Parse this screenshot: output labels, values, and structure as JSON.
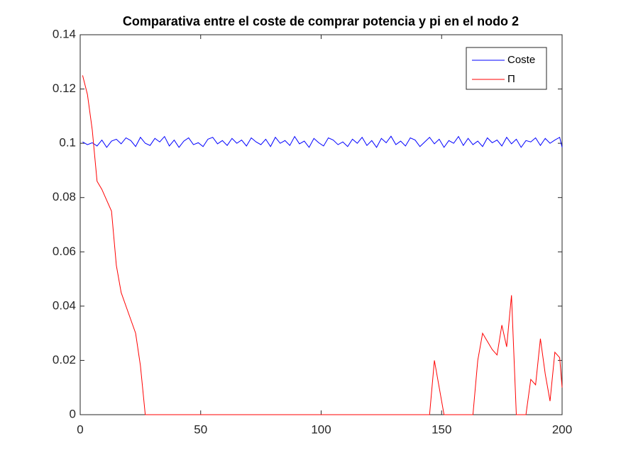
{
  "chart_data": {
    "type": "line",
    "title": "Comparativa entre el coste de comprar potencia y pi en el nodo 2",
    "x": [
      1,
      3,
      5,
      7,
      9,
      11,
      13,
      15,
      17,
      19,
      21,
      23,
      25,
      27,
      29,
      31,
      33,
      35,
      37,
      39,
      41,
      43,
      45,
      47,
      49,
      51,
      53,
      55,
      57,
      59,
      61,
      63,
      65,
      67,
      69,
      71,
      73,
      75,
      77,
      79,
      81,
      83,
      85,
      87,
      89,
      91,
      93,
      95,
      97,
      99,
      101,
      103,
      105,
      107,
      109,
      111,
      113,
      115,
      117,
      119,
      121,
      123,
      125,
      127,
      129,
      131,
      133,
      135,
      137,
      139,
      141,
      143,
      145,
      147,
      149,
      151,
      153,
      155,
      157,
      159,
      161,
      163,
      165,
      167,
      169,
      171,
      173,
      175,
      177,
      179,
      181,
      183,
      185,
      187,
      189,
      191,
      193,
      195,
      197,
      199,
      200
    ],
    "series": [
      {
        "name": "Coste",
        "color": "#0000ff",
        "values": [
          0.1005,
          0.0995,
          0.1002,
          0.099,
          0.1012,
          0.0985,
          0.1008,
          0.1015,
          0.0998,
          0.102,
          0.101,
          0.0988,
          0.1022,
          0.1,
          0.0992,
          0.1018,
          0.1005,
          0.1025,
          0.099,
          0.1012,
          0.0985,
          0.1008,
          0.102,
          0.0995,
          0.1002,
          0.0988,
          0.1015,
          0.1022,
          0.0998,
          0.101,
          0.0992,
          0.1018,
          0.1,
          0.1012,
          0.099,
          0.102,
          0.1005,
          0.0995,
          0.1015,
          0.0988,
          0.1022,
          0.1,
          0.101,
          0.0992,
          0.1025,
          0.0998,
          0.1008,
          0.0985,
          0.1018,
          0.1002,
          0.099,
          0.102,
          0.1012,
          0.0995,
          0.1005,
          0.0988,
          0.1015,
          0.1,
          0.1022,
          0.0992,
          0.101,
          0.0985,
          0.1018,
          0.1002,
          0.1026,
          0.0995,
          0.1008,
          0.099,
          0.102,
          0.1012,
          0.0988,
          0.1005,
          0.1022,
          0.0998,
          0.1015,
          0.0985,
          0.101,
          0.1,
          0.1025,
          0.0992,
          0.1018,
          0.0995,
          0.1008,
          0.0988,
          0.102,
          0.1002,
          0.1012,
          0.099,
          0.1022,
          0.0998,
          0.1015,
          0.0985,
          0.101,
          0.1005,
          0.102,
          0.0992,
          0.1018,
          0.1,
          0.1012,
          0.1022,
          0.0985
        ]
      },
      {
        "name": "Π",
        "color": "#ff0000",
        "values": [
          0.125,
          0.118,
          0.105,
          0.086,
          0.083,
          0.079,
          0.075,
          0.055,
          0.045,
          0.04,
          0.035,
          0.03,
          0.018,
          0,
          0,
          0,
          0,
          0,
          0,
          0,
          0,
          0,
          0,
          0,
          0,
          0,
          0,
          0,
          0,
          0,
          0,
          0,
          0,
          0,
          0,
          0,
          0,
          0,
          0,
          0,
          0,
          0,
          0,
          0,
          0,
          0,
          0,
          0,
          0,
          0,
          0,
          0,
          0,
          0,
          0,
          0,
          0,
          0,
          0,
          0,
          0,
          0,
          0,
          0,
          0,
          0,
          0,
          0,
          0,
          0,
          0,
          0,
          0,
          0.02,
          0.01,
          0,
          0,
          0,
          0,
          0,
          0,
          0,
          0.02,
          0.03,
          0.027,
          0.024,
          0.022,
          0.033,
          0.025,
          0.044,
          0,
          0,
          0,
          0.013,
          0.011,
          0.028,
          0.015,
          0.005,
          0.023,
          0.021,
          0.01
        ]
      }
    ],
    "xlim": [
      0,
      200
    ],
    "xticks": [
      0,
      50,
      100,
      150,
      200
    ],
    "ylim": [
      0,
      0.14
    ],
    "yticks": [
      0,
      0.02,
      0.04,
      0.06,
      0.08,
      0.1,
      0.12,
      0.14
    ],
    "legend": "top-right"
  }
}
